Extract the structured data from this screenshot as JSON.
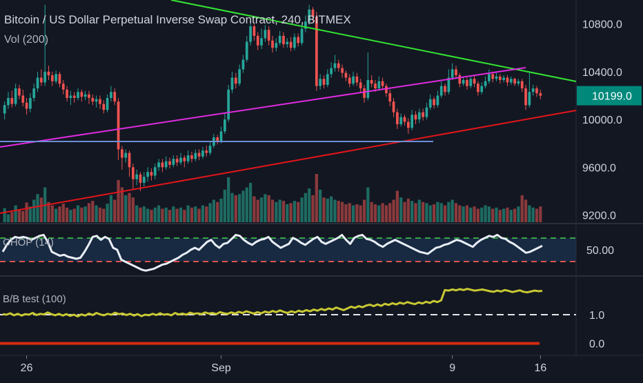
{
  "header": {
    "title": "Bitcoin / US Dollar Perpetual Inverse Swap Contract, 240, BITMEX",
    "volume_label": "Vol (200)"
  },
  "chart_data": [
    {
      "type": "candlestick",
      "title": "Bitcoin / US Dollar Perpetual Inverse Swap Contract, 240, BITMEX",
      "x_ticks": [
        "26",
        "Sep",
        "9",
        "16"
      ],
      "y_ticks": [
        9200,
        9600,
        10000,
        10400,
        10800
      ],
      "ylim": [
        9140,
        11000
      ],
      "last_price": "10199.0",
      "candles": [
        [
          10050,
          10120,
          10000,
          10150
        ],
        [
          10120,
          10180,
          10090,
          10230
        ],
        [
          10180,
          10130,
          10100,
          10240
        ],
        [
          10130,
          10260,
          10110,
          10300
        ],
        [
          10260,
          10200,
          10170,
          10290
        ],
        [
          10200,
          10140,
          10110,
          10250
        ],
        [
          10140,
          10090,
          10040,
          10180
        ],
        [
          10090,
          10180,
          10060,
          10220
        ],
        [
          10180,
          10260,
          10150,
          10300
        ],
        [
          10260,
          10350,
          10230,
          10400
        ],
        [
          10350,
          10310,
          10280,
          10420
        ],
        [
          10310,
          10400,
          10280,
          10960
        ],
        [
          10400,
          10370,
          10330,
          10450
        ],
        [
          10370,
          10320,
          10280,
          10400
        ],
        [
          10320,
          10380,
          10300,
          10410
        ],
        [
          10380,
          10300,
          10270,
          10400
        ],
        [
          10300,
          10250,
          10210,
          10330
        ],
        [
          10250,
          10180,
          10150,
          10280
        ],
        [
          10180,
          10200,
          10120,
          10240
        ],
        [
          10200,
          10180,
          10140,
          10230
        ],
        [
          10180,
          10230,
          10160,
          10260
        ],
        [
          10230,
          10190,
          10150,
          10250
        ],
        [
          10190,
          10210,
          10160,
          10240
        ],
        [
          10210,
          10180,
          10130,
          10240
        ],
        [
          10180,
          10150,
          10120,
          10210
        ],
        [
          10150,
          10170,
          10100,
          10200
        ],
        [
          10170,
          10130,
          10090,
          10200
        ],
        [
          10130,
          10080,
          10050,
          10160
        ],
        [
          10080,
          10180,
          10060,
          10210
        ],
        [
          10180,
          10230,
          10150,
          10280
        ],
        [
          10230,
          10150,
          10120,
          10260
        ],
        [
          10150,
          9750,
          9660,
          10180
        ],
        [
          9750,
          9680,
          9580,
          9780
        ],
        [
          9680,
          9720,
          9640,
          9750
        ],
        [
          9720,
          9600,
          9520,
          9740
        ],
        [
          9600,
          9500,
          9420,
          9630
        ],
        [
          9500,
          9540,
          9450,
          9580
        ],
        [
          9540,
          9470,
          9400,
          9560
        ],
        [
          9470,
          9520,
          9440,
          9560
        ],
        [
          9520,
          9560,
          9480,
          9600
        ],
        [
          9560,
          9530,
          9490,
          9590
        ],
        [
          9530,
          9600,
          9500,
          9630
        ],
        [
          9600,
          9640,
          9570,
          9670
        ],
        [
          9640,
          9600,
          9560,
          9670
        ],
        [
          9600,
          9650,
          9580,
          9690
        ],
        [
          9650,
          9620,
          9590,
          9680
        ],
        [
          9620,
          9670,
          9600,
          9700
        ],
        [
          9670,
          9640,
          9610,
          9700
        ],
        [
          9640,
          9680,
          9620,
          9720
        ],
        [
          9680,
          9650,
          9600,
          9700
        ],
        [
          9650,
          9700,
          9630,
          9740
        ],
        [
          9700,
          9670,
          9640,
          9730
        ],
        [
          9670,
          9720,
          9650,
          9750
        ],
        [
          9720,
          9690,
          9660,
          9750
        ],
        [
          9690,
          9740,
          9670,
          9770
        ],
        [
          9740,
          9720,
          9690,
          9780
        ],
        [
          9720,
          9780,
          9700,
          9810
        ],
        [
          9780,
          9850,
          9760,
          9880
        ],
        [
          9850,
          9820,
          9790,
          9870
        ],
        [
          9820,
          9900,
          9800,
          9940
        ],
        [
          9900,
          10000,
          9880,
          10050
        ],
        [
          10000,
          10250,
          9980,
          10290
        ],
        [
          10250,
          10350,
          10220,
          10400
        ],
        [
          10350,
          10300,
          10260,
          10390
        ],
        [
          10300,
          10420,
          10280,
          10460
        ],
        [
          10420,
          10500,
          10390,
          10540
        ],
        [
          10500,
          10650,
          10480,
          10700
        ],
        [
          10650,
          10780,
          10620,
          10820
        ],
        [
          10780,
          10700,
          10660,
          10800
        ],
        [
          10700,
          10620,
          10580,
          10730
        ],
        [
          10620,
          10680,
          10590,
          10760
        ],
        [
          10680,
          10750,
          10650,
          10790
        ],
        [
          10750,
          10660,
          10620,
          10780
        ],
        [
          10660,
          10600,
          10560,
          10700
        ],
        [
          10600,
          10640,
          10570,
          10680
        ],
        [
          10640,
          10700,
          10620,
          10740
        ],
        [
          10700,
          10630,
          10600,
          10730
        ],
        [
          10630,
          10650,
          10600,
          10680
        ],
        [
          10650,
          10600,
          10570,
          10690
        ],
        [
          10600,
          10690,
          10580,
          10720
        ],
        [
          10690,
          10640,
          10610,
          10720
        ],
        [
          10640,
          10760,
          10620,
          10800
        ],
        [
          10760,
          10820,
          10730,
          10870
        ],
        [
          10820,
          10920,
          10790,
          10960
        ],
        [
          10920,
          10860,
          10820,
          10940
        ],
        [
          10860,
          10280,
          10240,
          10900
        ],
        [
          10280,
          10340,
          10250,
          10380
        ],
        [
          10340,
          10290,
          10260,
          10370
        ],
        [
          10290,
          10380,
          10270,
          10420
        ],
        [
          10380,
          10430,
          10350,
          10480
        ],
        [
          10430,
          10470,
          10400,
          10540
        ],
        [
          10470,
          10430,
          10400,
          10500
        ],
        [
          10430,
          10390,
          10350,
          10460
        ],
        [
          10390,
          10350,
          10320,
          10410
        ],
        [
          10350,
          10300,
          10270,
          10380
        ],
        [
          10300,
          10360,
          10280,
          10400
        ],
        [
          10360,
          10310,
          10280,
          10390
        ],
        [
          10310,
          10260,
          10230,
          10340
        ],
        [
          10260,
          10180,
          10140,
          10290
        ],
        [
          10180,
          10330,
          10160,
          10560
        ],
        [
          10330,
          10300,
          10270,
          10370
        ],
        [
          10300,
          10260,
          10230,
          10330
        ],
        [
          10260,
          10320,
          10240,
          10360
        ],
        [
          10320,
          10280,
          10250,
          10350
        ],
        [
          10280,
          10220,
          10190,
          10300
        ],
        [
          10220,
          10150,
          10110,
          10250
        ],
        [
          10150,
          10060,
          10020,
          10180
        ],
        [
          10060,
          9960,
          9920,
          10090
        ],
        [
          9960,
          10020,
          9940,
          10050
        ],
        [
          10020,
          9980,
          9950,
          10040
        ],
        [
          9980,
          9930,
          9880,
          10010
        ],
        [
          9930,
          10040,
          9910,
          10080
        ],
        [
          10040,
          10000,
          9960,
          10070
        ],
        [
          10000,
          10060,
          9970,
          10090
        ],
        [
          10060,
          10020,
          9990,
          10090
        ],
        [
          10020,
          10100,
          10000,
          10140
        ],
        [
          10100,
          10170,
          10080,
          10210
        ],
        [
          10170,
          10120,
          10090,
          10190
        ],
        [
          10120,
          10200,
          10100,
          10240
        ],
        [
          10200,
          10280,
          10180,
          10320
        ],
        [
          10280,
          10230,
          10200,
          10300
        ],
        [
          10230,
          10350,
          10210,
          10420
        ],
        [
          10350,
          10420,
          10330,
          10470
        ],
        [
          10420,
          10370,
          10340,
          10450
        ],
        [
          10370,
          10300,
          10270,
          10390
        ],
        [
          10300,
          10330,
          10280,
          10360
        ],
        [
          10330,
          10280,
          10250,
          10350
        ],
        [
          10280,
          10340,
          10260,
          10370
        ],
        [
          10340,
          10300,
          10270,
          10370
        ],
        [
          10300,
          10230,
          10200,
          10320
        ],
        [
          10230,
          10280,
          10210,
          10310
        ],
        [
          10280,
          10320,
          10260,
          10360
        ],
        [
          10320,
          10380,
          10300,
          10420
        ],
        [
          10380,
          10340,
          10310,
          10400
        ],
        [
          10340,
          10360,
          10320,
          10390
        ],
        [
          10360,
          10330,
          10300,
          10380
        ],
        [
          10330,
          10350,
          10310,
          10370
        ],
        [
          10350,
          10310,
          10280,
          10370
        ],
        [
          10310,
          10340,
          10290,
          10360
        ],
        [
          10340,
          10300,
          10280,
          10350
        ],
        [
          10300,
          10320,
          10280,
          10340
        ],
        [
          10320,
          10260,
          10230,
          10340
        ],
        [
          10260,
          10120,
          10080,
          10290
        ],
        [
          10120,
          10230,
          10100,
          10390
        ],
        [
          10230,
          10260,
          10200,
          10290
        ],
        [
          10260,
          10220,
          10190,
          10280
        ],
        [
          10220,
          10199,
          10170,
          10250
        ]
      ],
      "volume": [
        25,
        14,
        18,
        30,
        22,
        20,
        35,
        28,
        40,
        50,
        44,
        62,
        36,
        30,
        24,
        28,
        33,
        26,
        22,
        24,
        30,
        26,
        28,
        34,
        38,
        30,
        26,
        24,
        33,
        48,
        40,
        75,
        62,
        48,
        52,
        44,
        30,
        26,
        28,
        24,
        22,
        26,
        30,
        24,
        26,
        22,
        28,
        24,
        26,
        22,
        30,
        26,
        28,
        24,
        30,
        28,
        34,
        40,
        36,
        42,
        58,
        80,
        52,
        48,
        50,
        56,
        62,
        70,
        46,
        40,
        44,
        50,
        48,
        40,
        36,
        40,
        38,
        32,
        34,
        38,
        36,
        44,
        52,
        60,
        48,
        86,
        58,
        44,
        42,
        46,
        40,
        38,
        36,
        32,
        34,
        30,
        32,
        30,
        40,
        62,
        36,
        32,
        30,
        34,
        30,
        34,
        40,
        56,
        44,
        36,
        42,
        38,
        34,
        40,
        36,
        34,
        30,
        32,
        36,
        34,
        30,
        36,
        40,
        34,
        30,
        28,
        30,
        26,
        28,
        24,
        26,
        30,
        28,
        24,
        26,
        22,
        24,
        26,
        22,
        24,
        28,
        48,
        40,
        30,
        26,
        24,
        28
      ]
    },
    {
      "type": "line",
      "title": "CHOP (14)",
      "y_ticks": [
        50
      ],
      "ylim": [
        25,
        75
      ],
      "upper_band": 61.8,
      "lower_band": 38.2,
      "values": [
        48,
        55,
        60,
        63,
        62,
        63,
        62,
        60,
        62,
        64,
        65,
        58,
        48,
        46,
        44,
        45,
        43,
        42,
        41,
        42,
        48,
        55,
        63,
        64,
        60,
        63,
        61,
        52,
        50,
        40,
        38,
        36,
        34,
        32,
        30,
        29,
        30,
        31,
        33,
        35,
        36,
        38,
        40,
        42,
        45,
        47,
        50,
        52,
        50,
        54,
        58,
        60,
        55,
        52,
        56,
        57,
        61,
        65,
        64,
        60,
        57,
        55,
        58,
        60,
        61,
        63,
        58,
        55,
        52,
        54,
        56,
        62,
        60,
        57,
        55,
        58,
        61,
        63,
        58,
        56,
        58,
        60,
        62,
        65,
        60,
        56,
        62,
        64,
        65,
        61,
        60,
        58,
        55,
        53,
        56,
        58,
        60,
        58,
        56,
        54,
        52,
        50,
        48,
        47,
        46,
        49,
        52,
        53,
        55,
        56,
        58,
        60,
        59,
        57,
        55,
        53,
        57,
        60,
        62,
        64,
        63,
        65,
        62,
        61,
        58,
        56,
        53,
        50,
        47,
        48,
        50,
        52,
        54
      ]
    },
    {
      "type": "line",
      "title": "B/B test (100)",
      "y_ticks": [
        0.0,
        1.0
      ],
      "ylim": [
        -0.25,
        2.3
      ],
      "reference_line": 1.0,
      "zero_line": 0.0,
      "values": [
        1.02,
        1.0,
        1.05,
        0.98,
        1.03,
        0.97,
        1.02,
        1.0,
        1.06,
        0.99,
        1.03,
        1.01,
        1.08,
        1.02,
        0.98,
        1.03,
        0.97,
        1.02,
        0.96,
        1.0,
        0.94,
        1.01,
        0.97,
        1.04,
        0.99,
        1.06,
        1.01,
        0.98,
        1.03,
        1.0,
        1.07,
        1.02,
        1.04,
        0.99,
        1.03,
        0.97,
        1.02,
        0.95,
        1.0,
        0.98,
        1.03,
        0.99,
        1.05,
        1.0,
        1.02,
        0.98,
        1.06,
        1.01,
        1.04,
        1.0,
        1.07,
        1.03,
        1.05,
        1.02,
        1.08,
        1.04,
        1.06,
        1.02,
        1.09,
        1.05,
        1.03,
        1.08,
        1.04,
        1.1,
        1.06,
        1.12,
        1.08,
        1.04,
        1.09,
        1.05,
        1.11,
        1.07,
        1.13,
        1.09,
        1.15,
        1.1,
        1.06,
        1.12,
        1.08,
        1.14,
        1.1,
        1.16,
        1.12,
        1.18,
        1.14,
        1.2,
        1.16,
        1.22,
        1.18,
        1.25,
        1.2,
        1.16,
        1.22,
        1.28,
        1.24,
        1.3,
        1.26,
        1.32,
        1.35,
        1.3,
        1.36,
        1.31,
        1.38,
        1.34,
        1.4,
        1.36,
        1.42,
        1.38,
        1.44,
        1.4,
        1.37,
        1.43,
        1.39,
        1.45,
        1.41,
        1.48,
        1.44,
        1.5,
        1.86,
        1.84,
        1.88,
        1.85,
        1.89,
        1.86,
        1.9,
        1.87,
        1.84,
        1.86,
        1.88,
        1.85,
        1.82,
        1.8,
        1.84,
        1.81,
        1.86,
        1.83,
        1.79,
        1.82,
        1.85,
        1.8,
        1.78,
        1.81,
        1.84,
        1.82,
        1.83
      ]
    }
  ],
  "colors": {
    "up": "#26a69a",
    "down": "#ef5350",
    "up_volume": "#1e6b62",
    "down_volume": "#8a3a3c",
    "resistance_line": "#33e533",
    "channel_line": "#e02be0",
    "support_line": "#e5151a",
    "horizontal_level": "#6b8fd6",
    "chop_line": "#e9eef7",
    "chop_band": "#1d3a5c",
    "chop_upper": "#3aa648",
    "chop_lower": "#e0524f",
    "bb_line": "#c8c832",
    "ref_line": "#e8e8e8",
    "zero_line": "#d72b10",
    "price_tag": "#00897b"
  }
}
